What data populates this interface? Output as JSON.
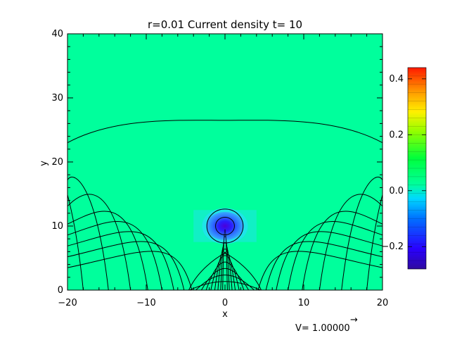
{
  "chart_data": {
    "type": "heatmap",
    "title": "r=0.01 Current density t= 10",
    "xlabel": "x",
    "ylabel": "y",
    "xlim": [
      -20,
      20
    ],
    "ylim": [
      0,
      40
    ],
    "x_ticks": [
      -20,
      -10,
      0,
      10,
      20
    ],
    "x_tick_labels": [
      "−20",
      "−10",
      "0",
      "10",
      "20"
    ],
    "y_ticks": [
      0,
      10,
      20,
      30,
      40
    ],
    "y_tick_labels": [
      "0",
      "10",
      "20",
      "30",
      "40"
    ],
    "background_value": 0.0,
    "current_sheet": {
      "center_x": 0,
      "center_y": 10,
      "peak_value": -0.28,
      "halo_value": -0.05
    },
    "x_point": {
      "x": 0,
      "y": 5.8
    },
    "field_lines": {
      "outer_arcs_y_at_center": [
        26.5
      ],
      "footpoint_pairs_x": [
        [
          -4.5,
          4.5
        ],
        [
          -3.7,
          3.7
        ],
        [
          -3.0,
          3.0
        ],
        [
          -2.4,
          2.4
        ],
        [
          -1.8,
          1.8
        ],
        [
          -1.3,
          1.3
        ],
        [
          -0.9,
          0.9
        ],
        [
          -0.55,
          0.55
        ],
        [
          -0.3,
          0.3
        ]
      ],
      "open_lines_foot_x": [
        4.2,
        5.2,
        6.5,
        8.0,
        9.8,
        12.0,
        14.8,
        18.0
      ],
      "island_radii": [
        2.3,
        1.2
      ]
    },
    "colorbar": {
      "min": -0.28,
      "max": 0.44,
      "ticks": [
        0.4,
        0.2,
        0.0,
        -0.2
      ],
      "tick_labels": [
        "0.4",
        "0.2",
        "0.0",
        "−0.2"
      ]
    },
    "velocity_label": "V= 1.00000",
    "velocity_arrow": "→",
    "colors": {
      "background_field": "#00ff9c",
      "current_core": "#3a00ff",
      "current_halo": "#1fe4e8"
    }
  }
}
